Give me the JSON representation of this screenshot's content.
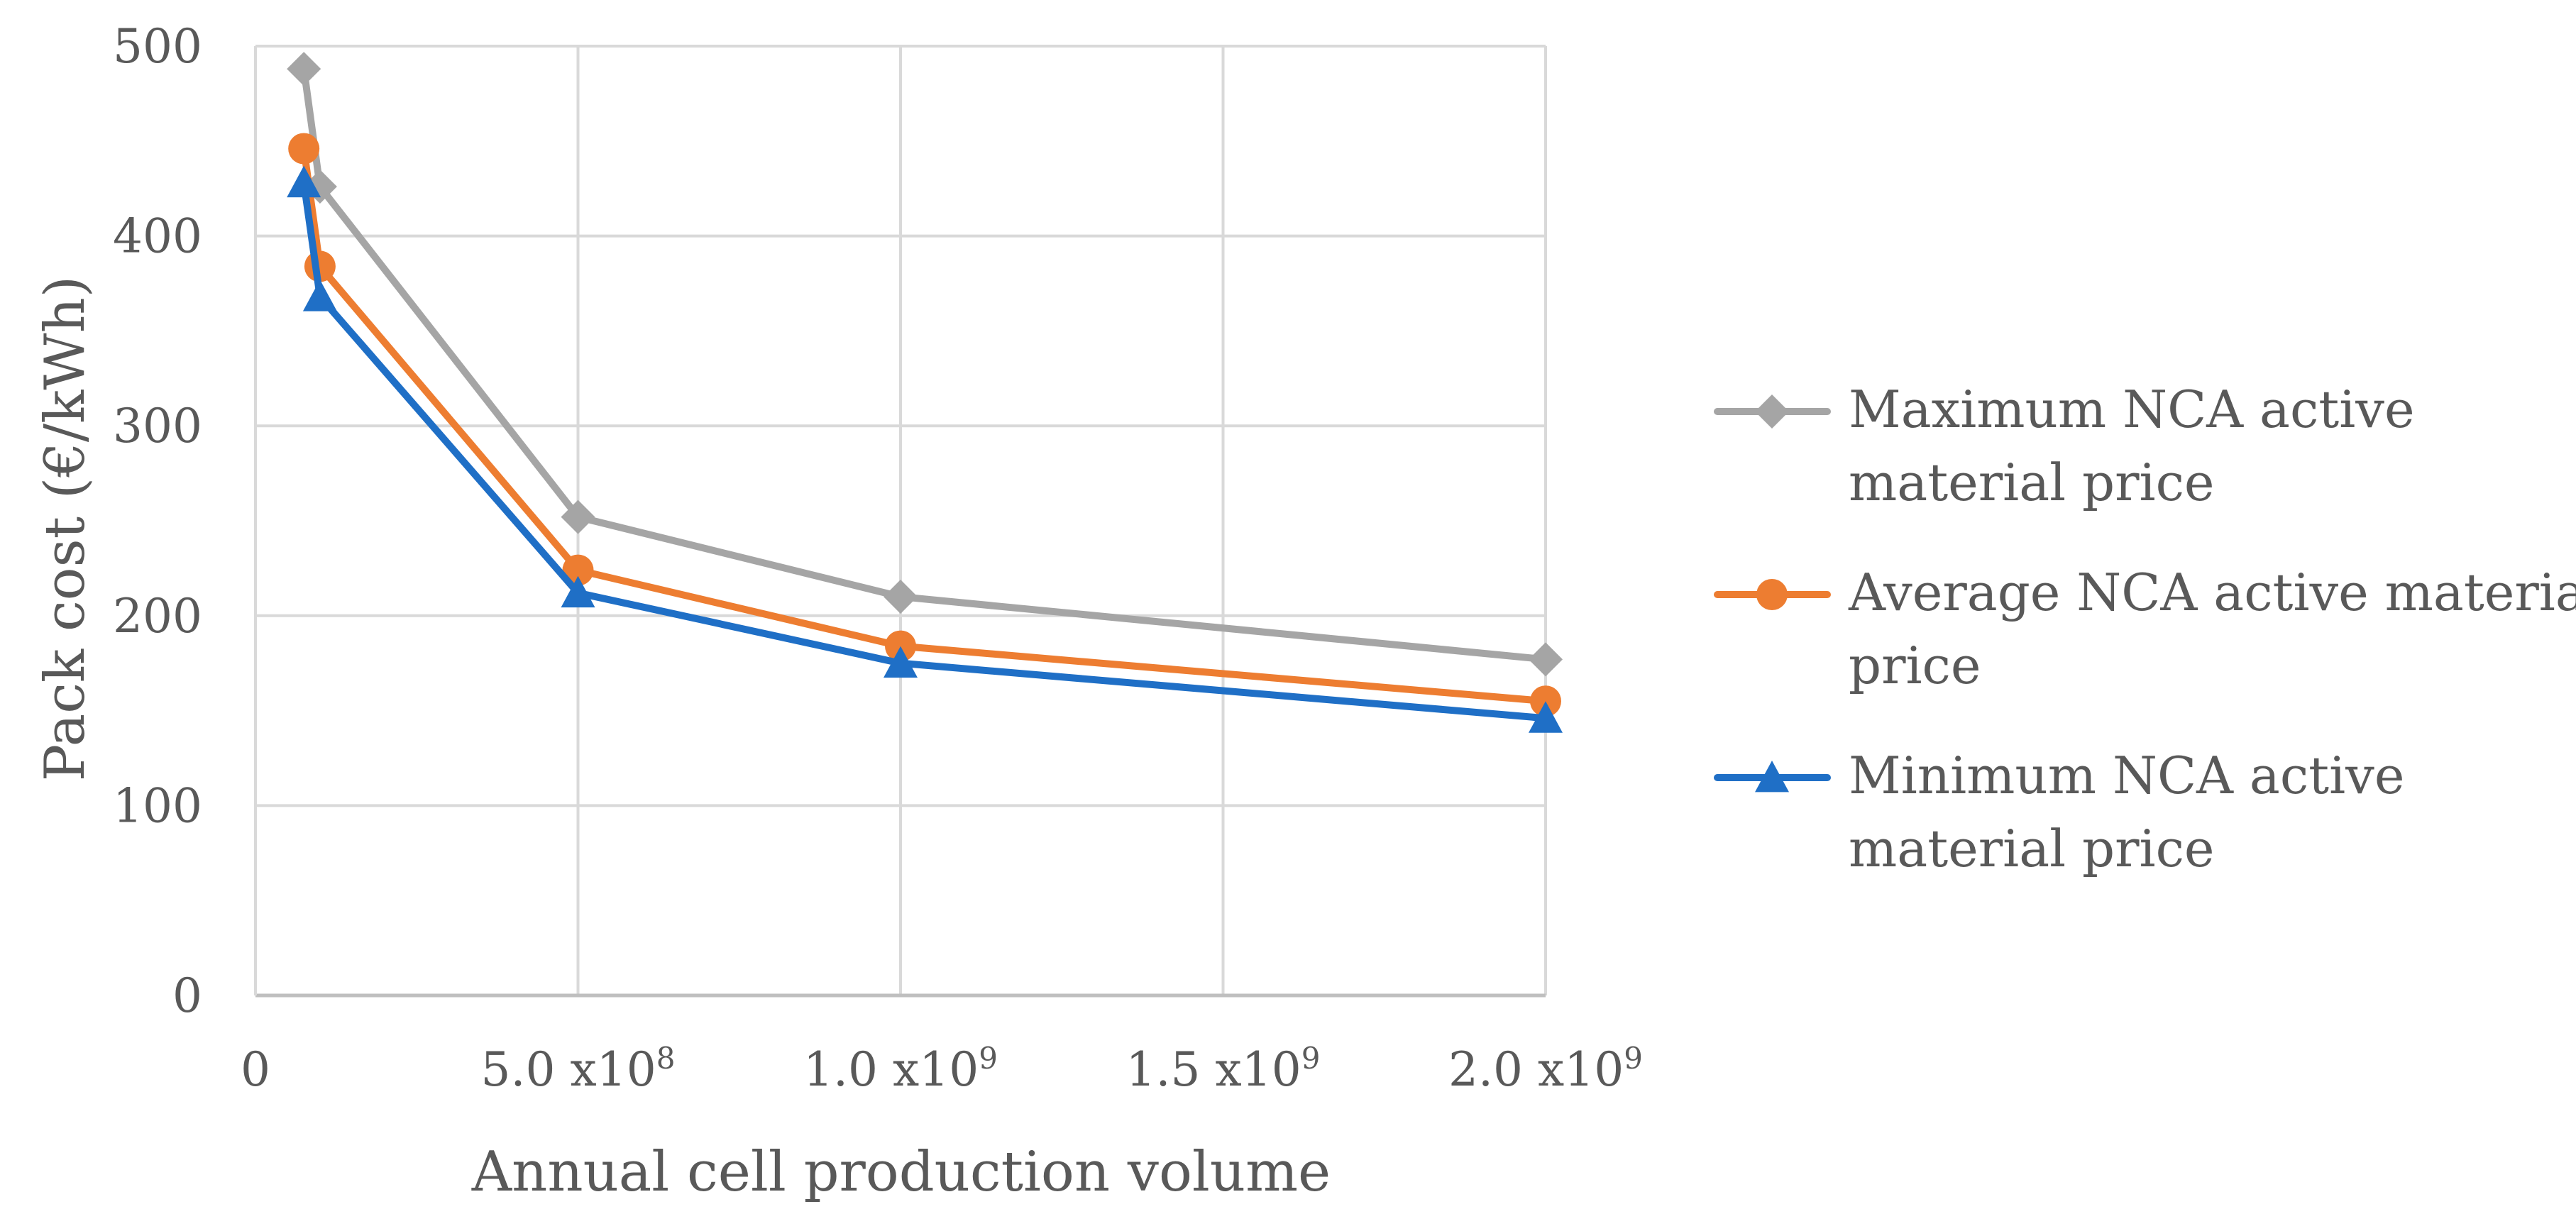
{
  "chart_data": {
    "type": "line",
    "title": "",
    "xlabel": "Annual cell production volume",
    "ylabel": "Pack cost (€/kWh)",
    "xlim": [
      0,
      2000000000
    ],
    "ylim": [
      0,
      500
    ],
    "grid": true,
    "legend_position": "right",
    "x_ticks": [
      {
        "value": 0,
        "base": "0",
        "exp": ""
      },
      {
        "value": 500000000,
        "base": "5.0 x10",
        "exp": "8"
      },
      {
        "value": 1000000000,
        "base": "1.0 x10",
        "exp": "9"
      },
      {
        "value": 1500000000,
        "base": "1.5 x10",
        "exp": "9"
      },
      {
        "value": 2000000000,
        "base": "2.0 x10",
        "exp": "9"
      }
    ],
    "y_ticks": [
      "0",
      "100",
      "200",
      "300",
      "400",
      "500"
    ],
    "x": [
      75000000,
      100000000,
      500000000,
      1000000000,
      2000000000
    ],
    "series": [
      {
        "name": "Maximum NCA active material price",
        "legend_lines": [
          "Maximum NCA active",
          "material price"
        ],
        "color": "#a5a5a5",
        "marker": "diamond",
        "values": [
          488,
          426,
          252,
          210,
          177
        ]
      },
      {
        "name": "Average NCA active material price",
        "legend_lines": [
          "Average NCA active material",
          "price"
        ],
        "color": "#ed7d31",
        "marker": "circle",
        "values": [
          446,
          384,
          224,
          184,
          155
        ]
      },
      {
        "name": "Minimum NCA active material price",
        "legend_lines": [
          "Minimum NCA active",
          "material price"
        ],
        "color": "#1f6fc6",
        "marker": "triangle",
        "values": [
          428,
          368,
          212,
          175,
          146
        ]
      }
    ]
  }
}
